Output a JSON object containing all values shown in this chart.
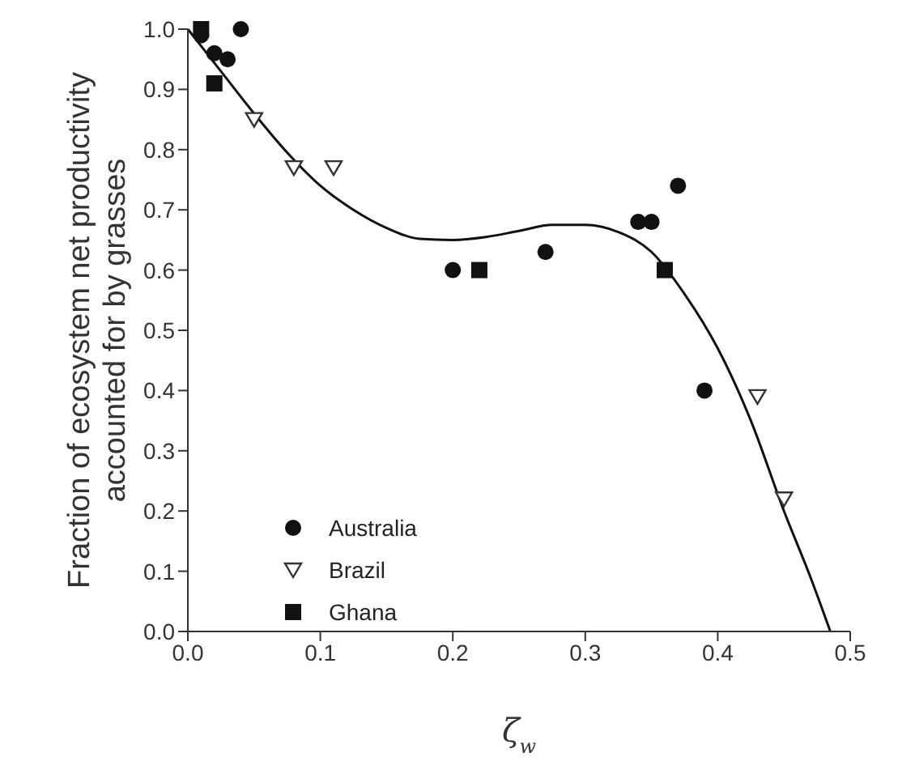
{
  "chart_data": {
    "type": "scatter",
    "xlabel": "ζ$_{w}$",
    "ylabel": "Fraction of ecosystem net productivity\naccounted for by grasses",
    "xlim": [
      0,
      0.5
    ],
    "xticks": [
      {
        "value": 0,
        "label": "0.0"
      },
      0.1,
      0.2,
      0.3,
      0.4,
      0.5
    ],
    "ylim": [
      0,
      1
    ],
    "yticks": [
      {
        "value": 0,
        "label": "0.0"
      },
      0.1,
      0.2,
      0.3,
      0.4,
      0.5,
      0.6,
      0.7,
      0.8,
      0.9,
      {
        "value": 1,
        "label": "1.0"
      }
    ],
    "grid": false,
    "legend": "bottom left",
    "series": [
      {
        "name": "Australia",
        "color": "#111111",
        "marker": "circle",
        "x": [
          0.01,
          0.02,
          0.03,
          0.04,
          0.2,
          0.27,
          0.34,
          0.35,
          0.37,
          0.39
        ],
        "values": [
          0.99,
          0.96,
          0.95,
          1.0,
          0.6,
          0.63,
          0.68,
          0.68,
          0.74,
          0.4
        ]
      },
      {
        "name": "Brazil",
        "color": "#333333",
        "marker": "triangle-down",
        "x": [
          0.05,
          0.08,
          0.11,
          0.43,
          0.45
        ],
        "values": [
          0.85,
          0.77,
          0.77,
          0.39,
          0.22
        ]
      },
      {
        "name": "Ghana",
        "color": "#111111",
        "marker": "square",
        "x": [
          0.01,
          0.02,
          0.22,
          0.36
        ],
        "values": [
          1.0,
          0.91,
          0.6,
          0.6
        ]
      },
      {
        "type": "line",
        "color": "#111111",
        "marker": "none",
        "x": [
          0,
          0.025,
          0.05,
          0.075,
          0.1,
          0.125,
          0.15,
          0.175,
          0.2,
          0.225,
          0.25,
          0.275,
          0.3,
          0.325,
          0.35,
          0.375,
          0.4,
          0.425,
          0.45,
          0.47,
          0.485
        ],
        "values": [
          1.0,
          0.93,
          0.86,
          0.795,
          0.74,
          0.7,
          0.67,
          0.652,
          0.65,
          0.655,
          0.665,
          0.675,
          0.675,
          0.663,
          0.63,
          0.56,
          0.47,
          0.35,
          0.2,
          0.09,
          0.0
        ]
      }
    ]
  }
}
